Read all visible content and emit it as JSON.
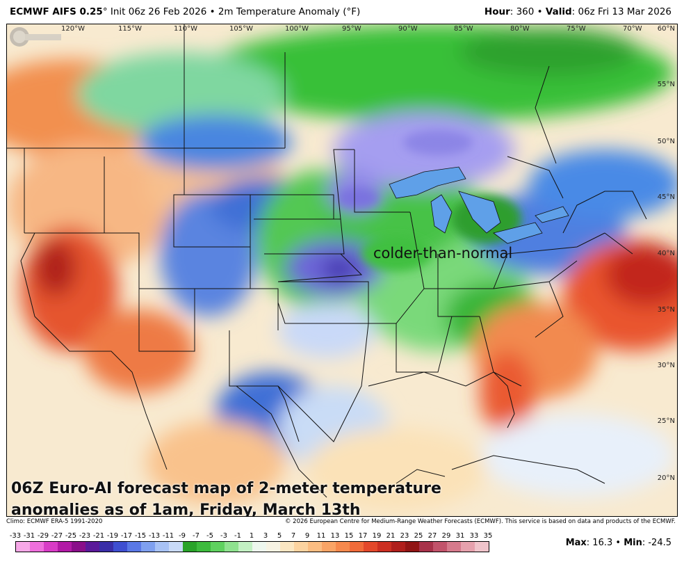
{
  "header": {
    "model": "ECMWF AIFS 0.25",
    "deg": "°",
    "init": " Init 06z 26 Feb 2026 • 2m Temperature Anomaly (°F)",
    "hour_label": "Hour",
    "hour_value": ": 360 • ",
    "valid_label": "Valid",
    "valid_value": ": 06z Fri 13 Mar 2026"
  },
  "map": {
    "lon_labels": [
      "120°W",
      "115°W",
      "110°W",
      "105°W",
      "100°W",
      "95°W",
      "90°W",
      "85°W",
      "80°W",
      "75°W",
      "70°W"
    ],
    "lat_labels": [
      "60°N",
      "55°N",
      "50°N",
      "45°N",
      "40°N",
      "35°N",
      "30°N",
      "25°N",
      "20°N"
    ],
    "annotation": "colder-than-normal",
    "caption_line1": "06Z Euro-AI forecast map of 2-meter temperature",
    "caption_line2": "anomalies as of 1am, Friday, March 13th",
    "logo_text": "WEATHERBELL"
  },
  "footer": {
    "climo": "Climo: ECMWF ERA-5 1991-2020",
    "copyright": "© 2026 European Centre for Medium-Range Weather Forecasts (ECMWF). This service is based on data and products of the ECMWF."
  },
  "colorbar": {
    "ticks": [
      "-33",
      "-31",
      "-29",
      "-27",
      "-25",
      "-23",
      "-21",
      "-19",
      "-17",
      "-15",
      "-13",
      "-11",
      "-9",
      "-7",
      "-5",
      "-3",
      "-1",
      "1",
      "3",
      "5",
      "7",
      "9",
      "11",
      "13",
      "15",
      "17",
      "19",
      "21",
      "23",
      "25",
      "27",
      "29",
      "31",
      "33",
      "35"
    ],
    "colors": [
      "#f7a8e8",
      "#ee6fdc",
      "#d83cc6",
      "#b21aa6",
      "#8a0f8a",
      "#5b1a9a",
      "#3a2ea8",
      "#3f4fd1",
      "#5a78e6",
      "#7fa0ef",
      "#a8c2f5",
      "#c9daf8",
      "#29a329",
      "#3dbb3d",
      "#5fd15f",
      "#8fe28f",
      "#c3f0c3",
      "#eef7ee",
      "#f7f3e3",
      "#fbe6c2",
      "#fcd3a0",
      "#fbbd82",
      "#f9a466",
      "#f6894d",
      "#f06b3a",
      "#e3482b",
      "#cc2f22",
      "#b01f1c",
      "#911515",
      "#a8324a",
      "#c2536b",
      "#d67a8c",
      "#e6a1ad",
      "#f0c4cb"
    ],
    "max_label": "Max",
    "max_value": ": 16.3 • ",
    "min_label": "Min",
    "min_value": ": -24.5"
  }
}
